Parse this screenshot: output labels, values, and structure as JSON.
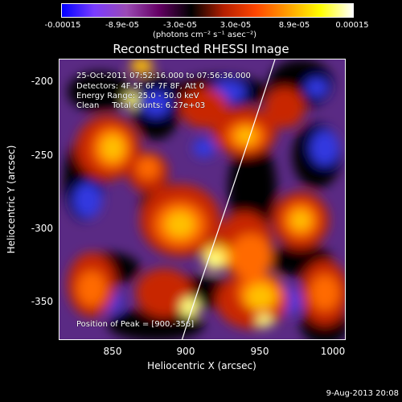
{
  "chart_data": {
    "type": "heatmap",
    "title": "Reconstructed RHESSI Image",
    "xlabel": "Heliocentric X (arcsec)",
    "ylabel": "Heliocentric Y (arcsec)",
    "xlim": [
      815,
      1010
    ],
    "ylim": [
      -375,
      -187
    ],
    "x_ticks": [
      "850",
      "900",
      "950",
      "1000"
    ],
    "y_ticks": [
      "-200",
      "-250",
      "-300",
      "-350"
    ],
    "colorbar": {
      "range": [
        -0.00015,
        0.00015
      ],
      "tick_labels": [
        "-0.00015",
        "-8.9e-05",
        "-3.0e-05",
        "3.0e-05",
        "8.9e-05",
        "0.00015"
      ],
      "unit": "(photons cm⁻² s⁻¹ asec⁻²)",
      "colormap": [
        "#0000ff",
        "#7a3cff",
        "#9a4ab4",
        "#640064",
        "#000000",
        "#b41e00",
        "#ff4600",
        "#ffa000",
        "#ffff00",
        "#ffffff"
      ]
    },
    "peak_position": [
      900,
      -356
    ],
    "limb_color": "#ffffff"
  },
  "annotations": {
    "time_range": "25-Oct-2011 07:52:16.000 to 07:56:36.000",
    "detectors": "Detectors: 4F 5F 6F 7F 8F, Att 0",
    "energy": "Energy Range: 25.0 - 50.0 keV",
    "method": "Clean     Total counts: 6.27e+03",
    "peak": "Position of Peak = [900,-356]"
  },
  "timestamp": "9-Aug-2013 20:08"
}
